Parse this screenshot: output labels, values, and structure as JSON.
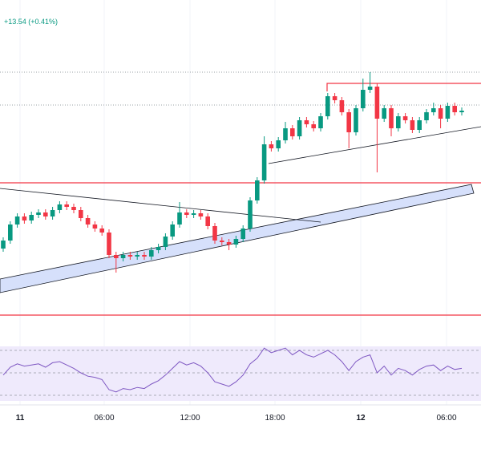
{
  "chart_data": {
    "type": "candlestick",
    "change_label": "+13.54 (+0.41%)",
    "time_labels": [
      "11",
      "06:00",
      "12:00",
      "18:00",
      "12",
      "06:00"
    ],
    "up_color": "#089981",
    "down_color": "#f23645",
    "ylim": [
      0,
      410
    ],
    "ohlc": [
      [
        100,
        114,
        96,
        110
      ],
      [
        110,
        134,
        106,
        130
      ],
      [
        130,
        144,
        126,
        140
      ],
      [
        140,
        144,
        131,
        135
      ],
      [
        135,
        146,
        131,
        142
      ],
      [
        142,
        149,
        138,
        145
      ],
      [
        145,
        149,
        136,
        140
      ],
      [
        140,
        152,
        136,
        148
      ],
      [
        148,
        159,
        144,
        155
      ],
      [
        155,
        159,
        148,
        152
      ],
      [
        152,
        156,
        144,
        148
      ],
      [
        148,
        152,
        134,
        138
      ],
      [
        138,
        142,
        126,
        130
      ],
      [
        130,
        134,
        121,
        125
      ],
      [
        125,
        129,
        116,
        120
      ],
      [
        120,
        124,
        88,
        92
      ],
      [
        92,
        96,
        70,
        88
      ],
      [
        88,
        96,
        84,
        92
      ],
      [
        92,
        96,
        86,
        90
      ],
      [
        90,
        96,
        86,
        92
      ],
      [
        92,
        96,
        86,
        90
      ],
      [
        90,
        102,
        86,
        98
      ],
      [
        98,
        106,
        94,
        102
      ],
      [
        102,
        119,
        98,
        115
      ],
      [
        115,
        134,
        111,
        130
      ],
      [
        130,
        158,
        126,
        145
      ],
      [
        145,
        149,
        138,
        142
      ],
      [
        142,
        148,
        138,
        144
      ],
      [
        144,
        148,
        136,
        140
      ],
      [
        140,
        144,
        124,
        128
      ],
      [
        128,
        132,
        106,
        110
      ],
      [
        110,
        114,
        104,
        108
      ],
      [
        108,
        112,
        98,
        105
      ],
      [
        105,
        116,
        101,
        112
      ],
      [
        112,
        129,
        108,
        125
      ],
      [
        125,
        164,
        121,
        160
      ],
      [
        160,
        189,
        156,
        185
      ],
      [
        185,
        240,
        181,
        230
      ],
      [
        230,
        234,
        221,
        225
      ],
      [
        225,
        239,
        221,
        235
      ],
      [
        235,
        258,
        231,
        250
      ],
      [
        250,
        254,
        236,
        240
      ],
      [
        240,
        264,
        236,
        260
      ],
      [
        260,
        264,
        251,
        255
      ],
      [
        255,
        259,
        246,
        250
      ],
      [
        250,
        269,
        246,
        265
      ],
      [
        265,
        294,
        261,
        290
      ],
      [
        290,
        294,
        281,
        285
      ],
      [
        285,
        289,
        266,
        270
      ],
      [
        270,
        274,
        225,
        245
      ],
      [
        245,
        279,
        241,
        275
      ],
      [
        275,
        312,
        271,
        298
      ],
      [
        298,
        320,
        294,
        302
      ],
      [
        302,
        306,
        195,
        262
      ],
      [
        262,
        279,
        258,
        275
      ],
      [
        275,
        279,
        240,
        250
      ],
      [
        250,
        269,
        246,
        265
      ],
      [
        265,
        269,
        256,
        260
      ],
      [
        260,
        264,
        244,
        248
      ],
      [
        248,
        264,
        244,
        260
      ],
      [
        260,
        274,
        256,
        270
      ],
      [
        270,
        282,
        266,
        275
      ],
      [
        275,
        279,
        250,
        262
      ],
      [
        262,
        282,
        258,
        278
      ],
      [
        278,
        282,
        266,
        270
      ],
      [
        270,
        276,
        266,
        272
      ]
    ],
    "rsi": {
      "color": "#7e57c2",
      "ylim": [
        25,
        75
      ],
      "yticks": [
        30,
        50,
        70
      ],
      "values": [
        48,
        55,
        58,
        56,
        57,
        58,
        55,
        59,
        60,
        57,
        54,
        50,
        47,
        46,
        44,
        35,
        33,
        36,
        35,
        37,
        36,
        40,
        43,
        48,
        54,
        60,
        57,
        59,
        56,
        50,
        42,
        40,
        38,
        42,
        48,
        58,
        63,
        72,
        68,
        70,
        72,
        66,
        70,
        66,
        64,
        67,
        70,
        66,
        60,
        52,
        60,
        64,
        66,
        50,
        56,
        48,
        54,
        52,
        48,
        53,
        56,
        57,
        52,
        56,
        53,
        54
      ]
    }
  }
}
